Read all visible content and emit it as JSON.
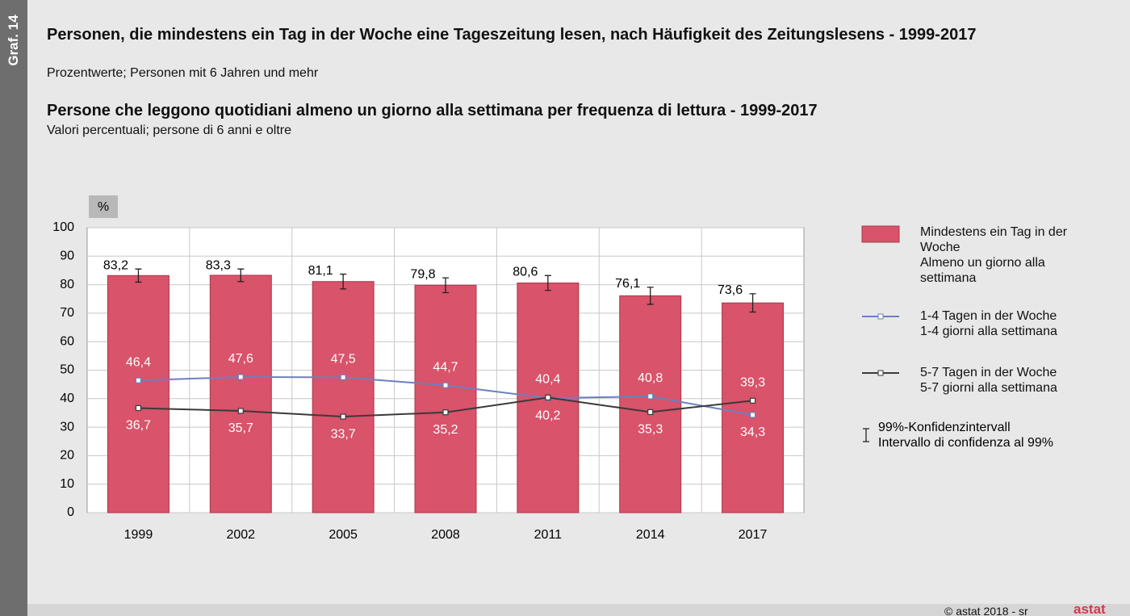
{
  "side_label": "Graf. 14",
  "chart_data": {
    "type": "bar",
    "title": "Personen, die mindestens ein Tag in der Woche eine Tageszeitung lesen, nach Häufigkeit  des Zeitungslesens - 1999-2017",
    "subtitle": "Prozentwerte; Personen mit 6 Jahren und mehr",
    "title_it": "Persone che leggono quotidiani almeno un giorno alla settimana per frequenza di lettura - 1999-2017",
    "subtitle_it": "Valori percentuali; persone di 6 anni e oltre",
    "unit": "%",
    "categories": [
      "1999",
      "2002",
      "2005",
      "2008",
      "2011",
      "2014",
      "2017"
    ],
    "ylim": [
      0,
      100
    ],
    "yticks": [
      0,
      10,
      20,
      30,
      40,
      50,
      60,
      70,
      80,
      90,
      100
    ],
    "grid": true,
    "series": [
      {
        "name": "Mindestens ein Tag in der Woche",
        "name_it": "Almeno un giorno alla settimana",
        "type": "bar",
        "color": "#d9536a",
        "values": [
          83.2,
          83.3,
          81.1,
          79.8,
          80.6,
          76.1,
          73.6
        ],
        "value_labels": [
          "83,2",
          "83,3",
          "81,1",
          "79,8",
          "80,6",
          "76,1",
          "73,6"
        ],
        "errors": [
          2.3,
          2.2,
          2.6,
          2.6,
          2.6,
          3.0,
          3.2
        ]
      },
      {
        "name": "1-4 Tagen in der Woche",
        "name_it": "1-4 giorni alla settimana",
        "type": "line",
        "color": "#6b80c0",
        "values": [
          46.4,
          47.6,
          47.5,
          44.7,
          40.2,
          40.8,
          34.3
        ],
        "value_labels": [
          "46,4",
          "47,6",
          "47,5",
          "44,7",
          "40,2",
          "40,8",
          "34,3"
        ]
      },
      {
        "name": "5-7 Tagen in der Woche",
        "name_it": "5-7 giorni alla settimana",
        "type": "line",
        "color": "#3a3a3a",
        "values": [
          36.7,
          35.7,
          33.7,
          35.2,
          40.4,
          35.3,
          39.3
        ],
        "value_labels": [
          "36,7",
          "35,7",
          "33,7",
          "35,2",
          "40,4",
          "35,3",
          "39,3"
        ]
      }
    ],
    "error_legend": [
      "99%-Konfidenzintervall",
      "Intervallo di confidenza al 99%"
    ]
  },
  "footer": "© astat 2018 - sr",
  "logo": "astat"
}
